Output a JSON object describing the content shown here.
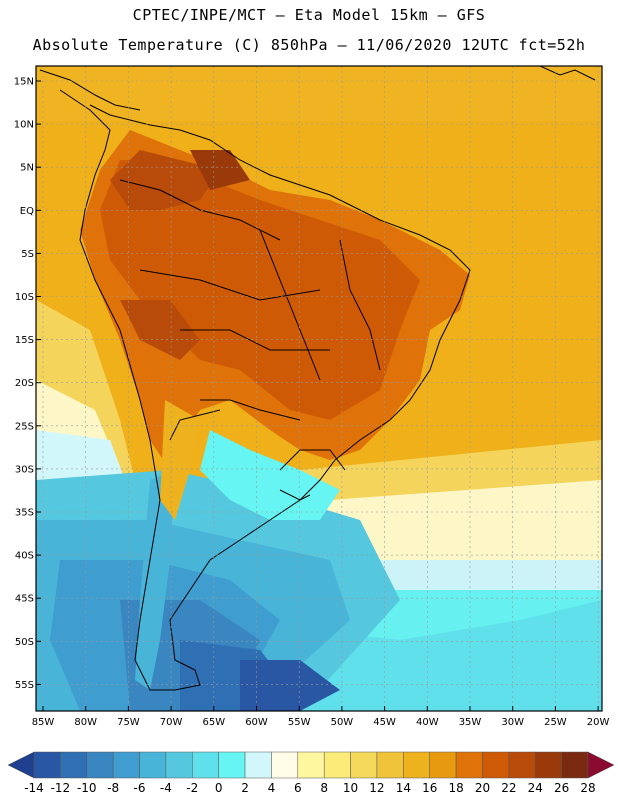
{
  "header": {
    "line1": "CPTEC/INPE/MCT –  Eta Model 15km – GFS",
    "line2": "Absolute Temperature (C) 850hPa – 11/06/2020 12UTC fct=52h"
  },
  "map": {
    "lat_labels": [
      "15N",
      "10N",
      "5N",
      "EQ",
      "5S",
      "10S",
      "15S",
      "20S",
      "25S",
      "30S",
      "35S",
      "40S",
      "45S",
      "50S",
      "55S"
    ],
    "lon_labels": [
      "85W",
      "80W",
      "75W",
      "70W",
      "65W",
      "60W",
      "55W",
      "50W",
      "45W",
      "40W",
      "35W",
      "30W",
      "25W",
      "20W"
    ]
  },
  "colorbar": {
    "labels": [
      "-14",
      "-12",
      "-10",
      "-8",
      "-6",
      "-4",
      "-2",
      "0",
      "2",
      "4",
      "6",
      "8",
      "10",
      "12",
      "14",
      "16",
      "18",
      "20",
      "22",
      "24",
      "26",
      "28"
    ],
    "colors": [
      "#1f3f8f",
      "#2a57a3",
      "#2f6fb3",
      "#3a86c0",
      "#3f9ecf",
      "#48b4d8",
      "#55c8e0",
      "#5fe0ea",
      "#66f5f2",
      "#d2f7fa",
      "#fefbe6",
      "#fff7a0",
      "#fbeb78",
      "#f5d95a",
      "#f0c43a",
      "#eeb21e",
      "#e79a10",
      "#df7208",
      "#cf5a05",
      "#b84a0a",
      "#9a3a0b",
      "#7a2a10",
      "#8a0a30"
    ]
  }
}
